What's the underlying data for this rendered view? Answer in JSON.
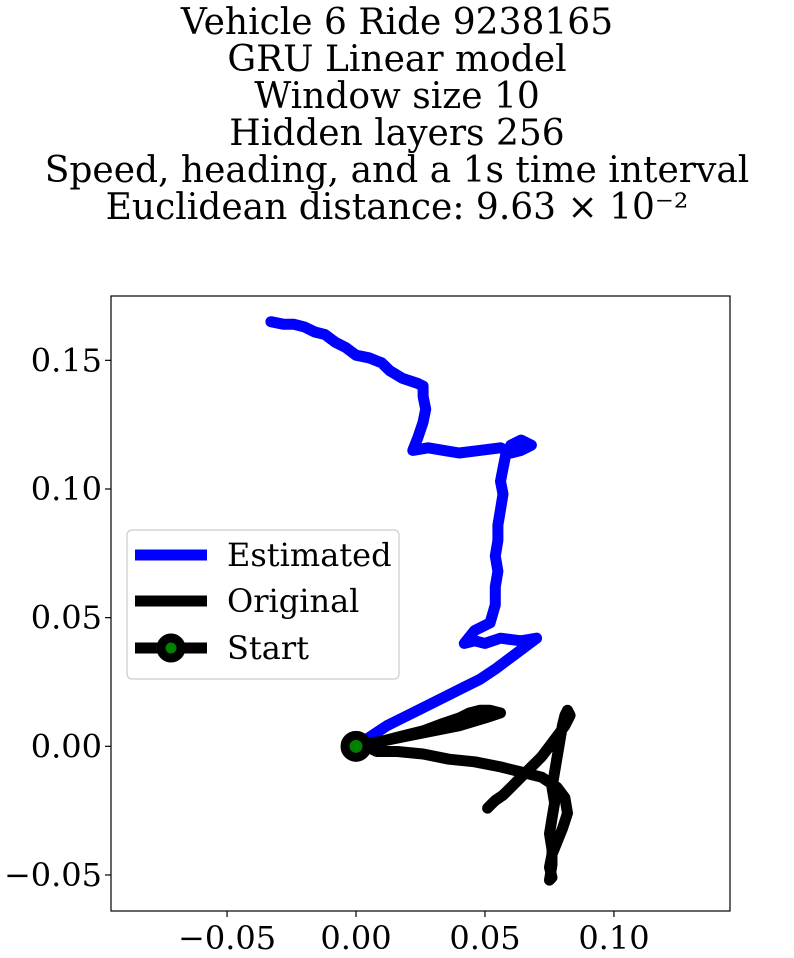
{
  "title_lines": [
    "Vehicle 6 Ride 9238165",
    "GRU Linear model",
    "Window size 10",
    "Hidden layers 256",
    "Speed, heading, and a 1s time interval",
    "Euclidean distance: 9.63 × 10⁻²"
  ],
  "chart_data": {
    "type": "line",
    "title": "Vehicle 6 Ride 9238165 / GRU Linear model / Window size 10 / Hidden layers 256 / Speed, heading, and a 1s time interval / Euclidean distance: 9.63 × 10⁻²",
    "xlabel": "",
    "ylabel": "",
    "xlim": [
      -0.095,
      0.145
    ],
    "ylim": [
      -0.064,
      0.175
    ],
    "xticks": [
      -0.05,
      0.0,
      0.05,
      0.1
    ],
    "xtick_labels": [
      "−0.05",
      "0.00",
      "0.05",
      "0.10"
    ],
    "yticks": [
      -0.05,
      0.0,
      0.05,
      0.1,
      0.15
    ],
    "ytick_labels": [
      "−0.05",
      "0.00",
      "0.05",
      "0.10",
      "0.15"
    ],
    "grid": false,
    "legend_position": "center-left",
    "series": [
      {
        "name": "Estimated",
        "color": "#0000ff",
        "x": [
          0.0,
          0.006,
          0.012,
          0.018,
          0.024,
          0.03,
          0.036,
          0.042,
          0.048,
          0.054,
          0.058,
          0.062,
          0.066,
          0.07,
          0.064,
          0.056,
          0.05,
          0.046,
          0.042,
          0.046,
          0.052,
          0.054,
          0.054,
          0.055,
          0.054,
          0.055,
          0.055,
          0.056,
          0.057,
          0.056,
          0.057,
          0.058,
          0.06,
          0.064,
          0.068,
          0.064,
          0.06,
          0.056,
          0.048,
          0.04,
          0.034,
          0.028,
          0.022,
          0.024,
          0.026,
          0.027,
          0.026,
          0.026,
          0.024,
          0.018,
          0.013,
          0.01,
          0.005,
          0.0,
          -0.004,
          -0.008,
          -0.012,
          -0.016,
          -0.02,
          -0.024,
          -0.028,
          -0.033
        ],
        "y": [
          0.0,
          0.004,
          0.008,
          0.011,
          0.014,
          0.017,
          0.02,
          0.023,
          0.026,
          0.03,
          0.033,
          0.036,
          0.039,
          0.042,
          0.041,
          0.042,
          0.04,
          0.041,
          0.04,
          0.045,
          0.048,
          0.055,
          0.062,
          0.068,
          0.074,
          0.08,
          0.086,
          0.092,
          0.098,
          0.103,
          0.108,
          0.113,
          0.117,
          0.119,
          0.117,
          0.115,
          0.114,
          0.116,
          0.115,
          0.114,
          0.115,
          0.116,
          0.115,
          0.12,
          0.126,
          0.131,
          0.136,
          0.14,
          0.141,
          0.143,
          0.146,
          0.149,
          0.151,
          0.152,
          0.155,
          0.157,
          0.16,
          0.161,
          0.163,
          0.164,
          0.164,
          0.165
        ]
      },
      {
        "name": "Original",
        "color": "#000000",
        "x": [
          0.0,
          0.01,
          0.02,
          0.03,
          0.04,
          0.05,
          0.056,
          0.052,
          0.048,
          0.044,
          0.04,
          0.034,
          0.026,
          0.018,
          0.01,
          0.004,
          0.008,
          0.016,
          0.026,
          0.036,
          0.046,
          0.056,
          0.064,
          0.072,
          0.078,
          0.081,
          0.082,
          0.08,
          0.078,
          0.076,
          0.075,
          0.076,
          0.075,
          0.076,
          0.076,
          0.075,
          0.076,
          0.077,
          0.076,
          0.077,
          0.078,
          0.079,
          0.08,
          0.081,
          0.082,
          0.083,
          0.081,
          0.078,
          0.075,
          0.072,
          0.069,
          0.066,
          0.063,
          0.06,
          0.057,
          0.054,
          0.052,
          0.051
        ],
        "y": [
          0.0,
          0.002,
          0.004,
          0.006,
          0.008,
          0.011,
          0.013,
          0.014,
          0.014,
          0.013,
          0.011,
          0.009,
          0.006,
          0.004,
          0.002,
          0.0,
          -0.002,
          -0.002,
          -0.003,
          -0.005,
          -0.006,
          -0.008,
          -0.01,
          -0.012,
          -0.016,
          -0.02,
          -0.026,
          -0.032,
          -0.037,
          -0.042,
          -0.047,
          -0.051,
          -0.052,
          -0.046,
          -0.04,
          -0.034,
          -0.028,
          -0.022,
          -0.016,
          -0.01,
          -0.004,
          0.002,
          0.008,
          0.012,
          0.014,
          0.012,
          0.008,
          0.004,
          0.0,
          -0.004,
          -0.007,
          -0.01,
          -0.013,
          -0.016,
          -0.019,
          -0.021,
          -0.023,
          -0.024
        ]
      },
      {
        "name": "Start",
        "type": "marker",
        "x": [
          0.0
        ],
        "y": [
          0.0
        ],
        "marker_edge_color": "#000000",
        "marker_face_color": "#008000"
      }
    ]
  }
}
